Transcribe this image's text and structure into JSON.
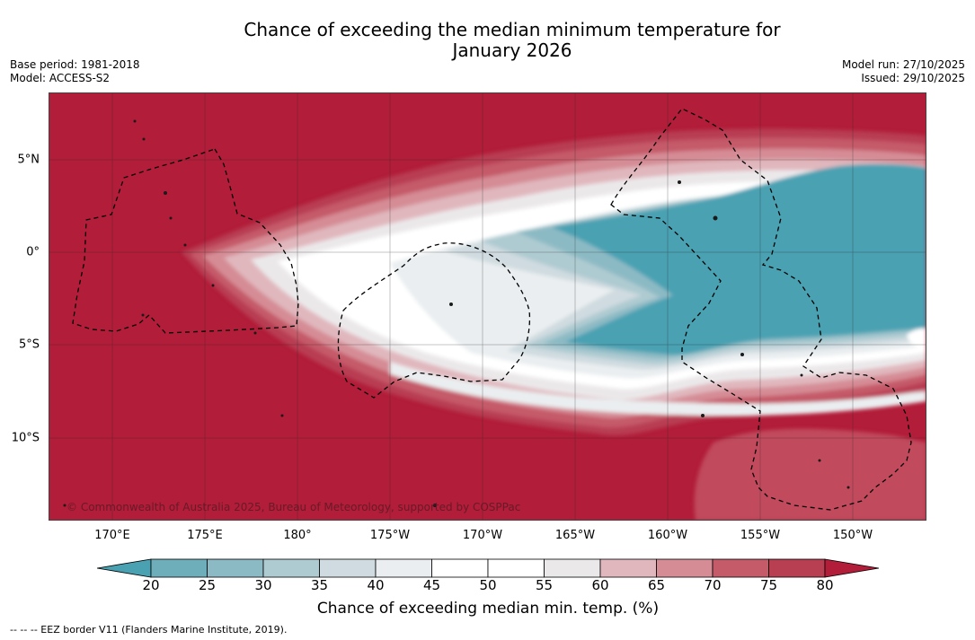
{
  "title_line1": "Chance of exceeding the median minimum temperature for",
  "title_line2": "January 2026",
  "meta_left": {
    "base_period": "Base period: 1981-2018",
    "model": "Model: ACCESS-S2"
  },
  "meta_right": {
    "model_run": "Model run: 27/10/2025",
    "issued": "Issued: 29/10/2025"
  },
  "map": {
    "longitude_labels": [
      "170°E",
      "175°E",
      "180°",
      "175°W",
      "170°W",
      "165°W",
      "160°W",
      "155°W",
      "150°W"
    ],
    "latitude_labels": [
      "5°N",
      "0°",
      "5°S",
      "10°S"
    ],
    "copyright": "© Commonwealth of Australia 2025, Bureau of Meteorology, supported by COSPPac"
  },
  "colorbar": {
    "label": "Chance of exceeding median min. temp. (%)",
    "ticks": [
      "20",
      "25",
      "30",
      "35",
      "40",
      "45",
      "50",
      "55",
      "60",
      "65",
      "70",
      "75",
      "80"
    ],
    "colors": [
      "#4aa1b2",
      "#6eaebb",
      "#8cbac4",
      "#aecbd1",
      "#cfdbe0",
      "#eaeef0",
      "#ffffff",
      "#ffffff",
      "#ebe8ea",
      "#e0b7bd",
      "#d58c95",
      "#c55a69",
      "#b83e52",
      "#b21d39"
    ],
    "under_color": "#4aa1b2",
    "over_color": "#b21d39"
  },
  "footnote": "--  --  -- EEZ border V11 (Flanders Marine Institute, 2019)."
}
